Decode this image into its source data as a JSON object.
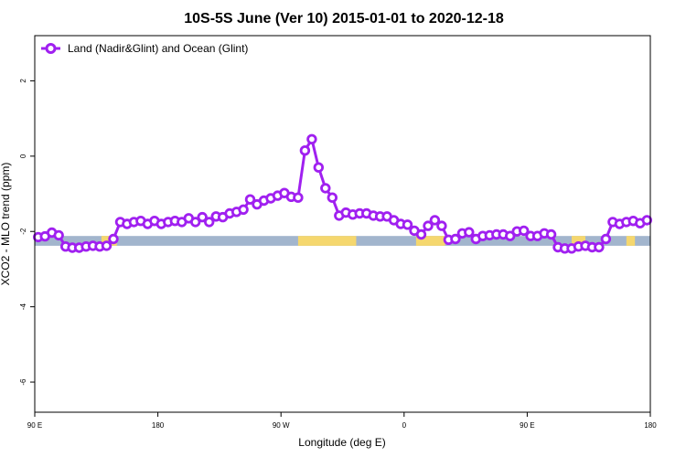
{
  "chart_data": {
    "type": "line",
    "title": "10S-5S June (Ver 10)   2015-01-01 to 2020-12-18",
    "xlabel": "Longitude (deg E)",
    "ylabel": "XCO2 - MLO trend (ppm)",
    "xlim": [
      90,
      450
    ],
    "ylim": [
      -6.8,
      3.2
    ],
    "x_ticks": [
      {
        "value": 90,
        "label": "90 E"
      },
      {
        "value": 162,
        "label": "180"
      },
      {
        "value": 234,
        "label": "90 W"
      },
      {
        "value": 306,
        "label": "0"
      },
      {
        "value": 378,
        "label": "90 E"
      },
      {
        "value": 450,
        "label": "180"
      }
    ],
    "y_ticks": [
      {
        "value": 2,
        "label": "2"
      },
      {
        "value": 0,
        "label": "0"
      },
      {
        "value": -2,
        "label": "-2"
      },
      {
        "value": -4,
        "label": "-4"
      },
      {
        "value": -6,
        "label": "-6"
      }
    ],
    "grid": false,
    "legend_position": "top-left",
    "series": [
      {
        "name": "Land (Nadir&Glint) and Ocean (Glint)",
        "color": "#a020f0",
        "marker": "open-circle",
        "x": [
          92,
          96,
          100,
          104,
          108,
          112,
          116,
          120,
          124,
          128,
          132,
          136,
          140,
          144,
          148,
          152,
          156,
          160,
          164,
          168,
          172,
          176,
          180,
          184,
          188,
          192,
          196,
          200,
          204,
          208,
          212,
          216,
          220,
          224,
          228,
          232,
          236,
          240,
          244,
          248,
          252,
          256,
          260,
          264,
          268,
          272,
          276,
          280,
          284,
          288,
          292,
          296,
          300,
          304,
          308,
          312,
          316,
          320,
          324,
          328,
          332,
          336,
          340,
          344,
          348,
          352,
          356,
          360,
          364,
          368,
          372,
          376,
          380,
          384,
          388,
          392,
          396,
          400,
          404,
          408,
          412,
          416,
          420,
          424,
          428,
          432,
          436,
          440,
          444,
          448
        ],
        "y": [
          -2.15,
          -2.13,
          -2.03,
          -2.1,
          -2.4,
          -2.43,
          -2.43,
          -2.4,
          -2.38,
          -2.4,
          -2.38,
          -2.2,
          -1.75,
          -1.8,
          -1.75,
          -1.72,
          -1.8,
          -1.72,
          -1.8,
          -1.75,
          -1.72,
          -1.75,
          -1.65,
          -1.75,
          -1.62,
          -1.75,
          -1.6,
          -1.62,
          -1.52,
          -1.48,
          -1.42,
          -1.15,
          -1.28,
          -1.18,
          -1.12,
          -1.05,
          -0.98,
          -1.08,
          -1.1,
          0.15,
          0.45,
          -0.3,
          -0.85,
          -1.1,
          -1.58,
          -1.5,
          -1.55,
          -1.52,
          -1.52,
          -1.58,
          -1.6,
          -1.6,
          -1.7,
          -1.8,
          -1.82,
          -1.98,
          -2.08,
          -1.85,
          -1.7,
          -1.85,
          -2.22,
          -2.2,
          -2.05,
          -2.02,
          -2.2,
          -2.12,
          -2.1,
          -2.08,
          -2.08,
          -2.12,
          -2.0,
          -1.98,
          -2.12,
          -2.12,
          -2.05,
          -2.08,
          -2.42,
          -2.45,
          -2.45,
          -2.4,
          -2.38,
          -2.42,
          -2.42,
          -2.2,
          -1.75,
          -1.8,
          -1.75,
          -1.72,
          -1.78,
          -1.7
        ]
      }
    ],
    "surface_band": {
      "y_top": -2.12,
      "y_bottom": -2.38,
      "ocean_color": "#a2b5cd",
      "land_color": "#f5d76e",
      "land_segments": [
        [
          129,
          138
        ],
        [
          244,
          278
        ],
        [
          313,
          330
        ],
        [
          404,
          412
        ],
        [
          436,
          441
        ]
      ]
    }
  }
}
